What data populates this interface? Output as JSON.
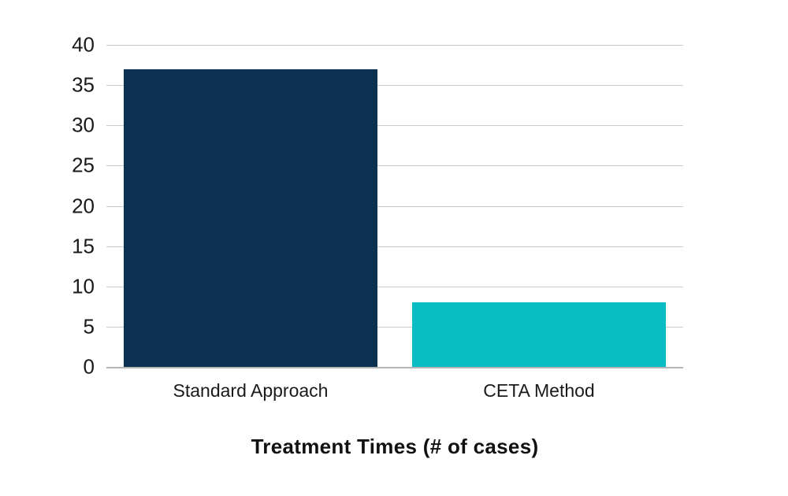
{
  "chart_data": {
    "type": "bar",
    "title": "Treatment Times (# of cases)",
    "categories": [
      "Standard Approach",
      "CETA Method"
    ],
    "values": [
      37,
      8
    ],
    "bar_colors": [
      "#0d3150",
      "#0abdc5"
    ],
    "xlabel": "",
    "ylabel": "",
    "ylim": [
      0,
      40
    ],
    "yticks": [
      0,
      5,
      10,
      15,
      20,
      25,
      30,
      35,
      40
    ],
    "grid": "horizontal",
    "legend_position": "none",
    "gridline_color": "#cacaca",
    "baseline_color": "#b5b5b5",
    "text_color": "#1a1a1a",
    "background_color": "#ffffff"
  }
}
